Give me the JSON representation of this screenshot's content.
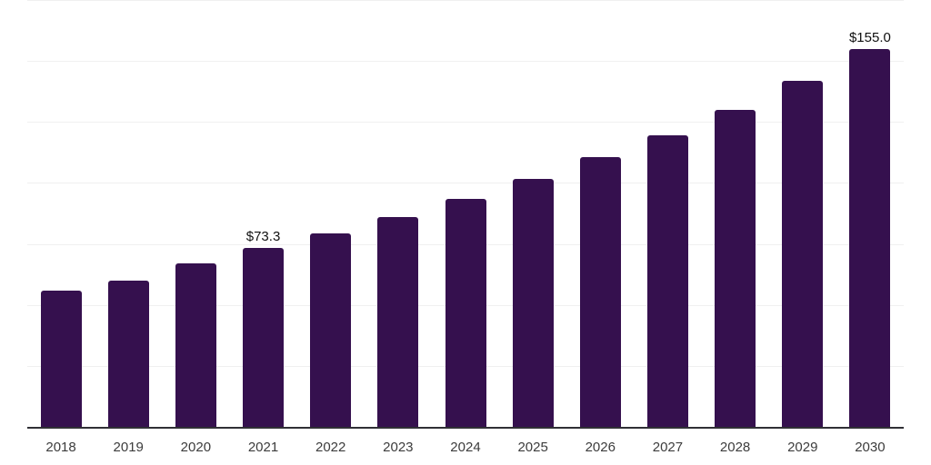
{
  "chart_data": {
    "type": "bar",
    "title": "",
    "xlabel": "",
    "ylabel": "",
    "categories": [
      "2018",
      "2019",
      "2020",
      "2021",
      "2022",
      "2023",
      "2024",
      "2025",
      "2026",
      "2027",
      "2028",
      "2029",
      "2030"
    ],
    "values": [
      55.7,
      59.8,
      67.2,
      73.3,
      79.5,
      86.2,
      93.3,
      101.5,
      110.5,
      119.4,
      129.9,
      142.0,
      155.0
    ],
    "data_labels": [
      null,
      null,
      null,
      "$73.3",
      null,
      null,
      null,
      null,
      null,
      null,
      null,
      null,
      "$155.0"
    ],
    "ylim": [
      0,
      175
    ],
    "gridline_step": 25,
    "grid": "horizontal",
    "legend": "none",
    "colors": {
      "bar": "#35104E",
      "gridline": "#f0f0f0",
      "axis_line": "#303035",
      "tick_label": "#3c3c3c",
      "data_label": "#101010",
      "background": "#ffffff"
    }
  }
}
